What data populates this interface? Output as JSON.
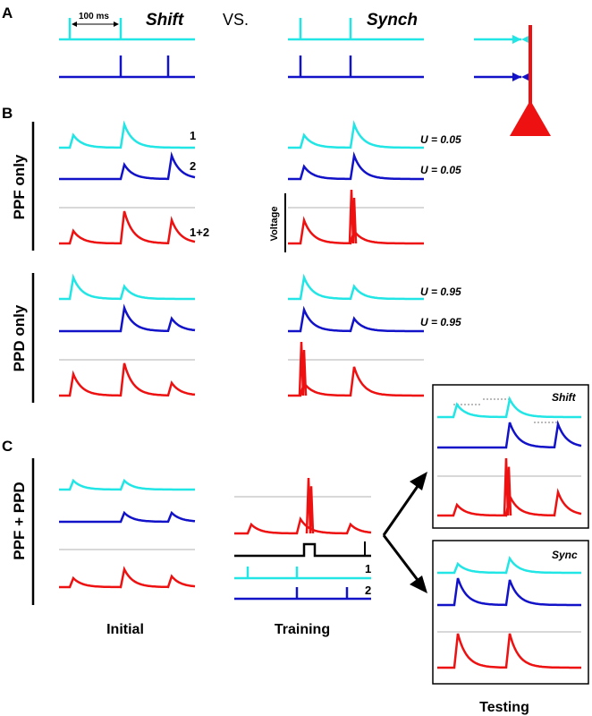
{
  "panels": {
    "a": "A",
    "b": "B",
    "c": "C"
  },
  "header": {
    "shift": "Shift",
    "vs": "VS.",
    "synch": "Synch",
    "scale_bar": "100 ms"
  },
  "rows": {
    "ppf": "PPF only",
    "ppd": "PPD only",
    "both": "PPF + PPD"
  },
  "traces": {
    "input1": "1",
    "input2": "2",
    "sum": "1+2",
    "voltage": "Voltage"
  },
  "params": {
    "ppf_u1": "U = 0.05",
    "ppf_u2": "U = 0.05",
    "ppd_u1": "U = 0.95",
    "ppd_u2": "U = 0.95"
  },
  "panel_c": {
    "shift_box": "Shift",
    "sync_box": "Sync",
    "train_1": "1",
    "train_2": "2"
  },
  "footer": {
    "initial": "Initial",
    "training": "Training",
    "testing": "Testing"
  },
  "colors": {
    "cyan": "#22e5e5",
    "blue": "#1212c8",
    "red": "#ee1111",
    "grid": "#b0b0b0"
  }
}
